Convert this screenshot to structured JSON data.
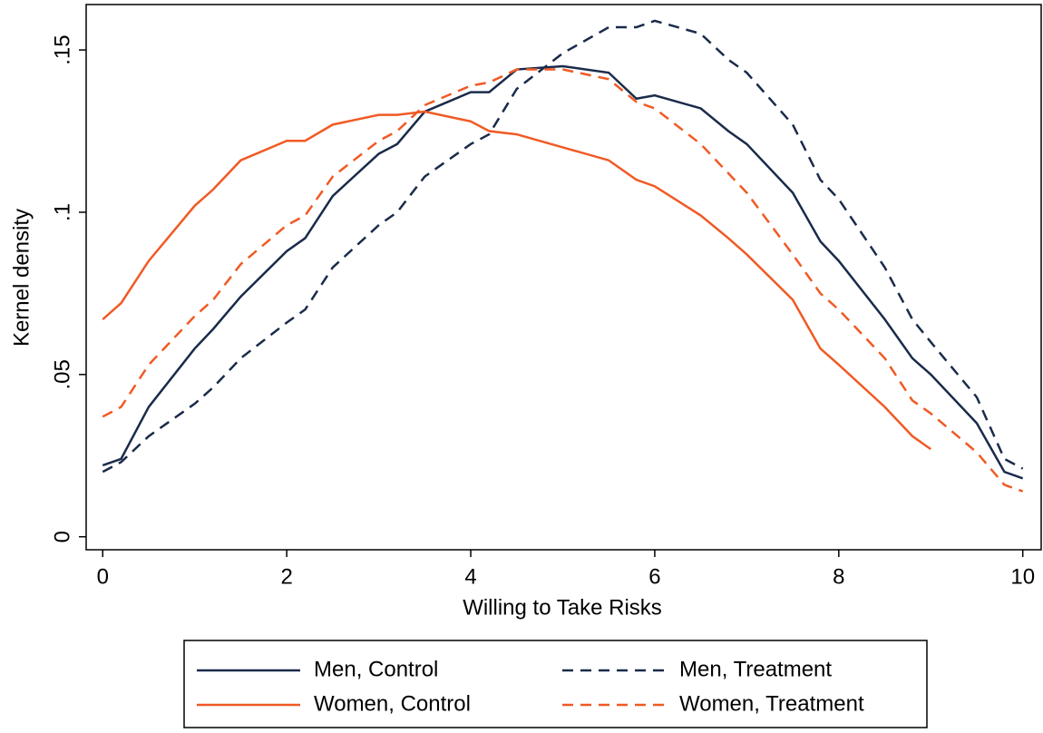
{
  "chart_data": {
    "type": "line",
    "xlabel": "Willing to Take Risks",
    "ylabel": "Kernel density",
    "x": [
      0,
      0.2,
      0.5,
      1,
      1.2,
      1.5,
      2,
      2.2,
      2.5,
      3,
      3.2,
      3.5,
      4,
      4.2,
      4.5,
      5,
      5.5,
      5.8,
      6,
      6.5,
      6.8,
      7,
      7.5,
      7.8,
      8,
      8.5,
      8.8,
      9,
      9.5,
      9.8,
      10
    ],
    "series": [
      {
        "name": "Men, Control",
        "color": "#1a2b4a",
        "dashed": false,
        "values": [
          0.022,
          0.024,
          0.04,
          0.058,
          0.064,
          0.074,
          0.088,
          0.092,
          0.105,
          0.118,
          0.121,
          0.131,
          0.137,
          0.137,
          0.144,
          0.145,
          0.143,
          0.135,
          0.136,
          0.132,
          0.125,
          0.121,
          0.106,
          0.091,
          0.085,
          0.067,
          0.055,
          0.05,
          0.035,
          0.02,
          0.018
        ]
      },
      {
        "name": "Men, Treatment",
        "color": "#1a2b4a",
        "dashed": true,
        "values": [
          0.02,
          0.023,
          0.031,
          0.041,
          0.046,
          0.055,
          0.066,
          0.07,
          0.083,
          0.096,
          0.1,
          0.111,
          0.121,
          0.124,
          0.138,
          0.149,
          0.157,
          0.157,
          0.159,
          0.155,
          0.147,
          0.143,
          0.127,
          0.11,
          0.104,
          0.083,
          0.067,
          0.06,
          0.043,
          0.024,
          0.021
        ]
      },
      {
        "name": "Women, Control",
        "color": "#f05a24",
        "dashed": false,
        "values": [
          0.067,
          0.072,
          0.085,
          0.102,
          0.107,
          0.116,
          0.122,
          0.122,
          0.127,
          0.13,
          0.13,
          0.131,
          0.128,
          0.125,
          0.124,
          0.12,
          0.116,
          0.11,
          0.108,
          0.099,
          0.092,
          0.087,
          0.073,
          0.058,
          0.053,
          0.04,
          0.031,
          0.027,
          null,
          null,
          null
        ]
      },
      {
        "name": "Women, Treatment",
        "color": "#f05a24",
        "dashed": true,
        "values": [
          0.037,
          0.04,
          0.053,
          0.068,
          0.073,
          0.084,
          0.096,
          0.099,
          0.111,
          0.122,
          0.125,
          0.133,
          0.139,
          0.14,
          0.144,
          0.144,
          0.141,
          0.134,
          0.132,
          0.121,
          0.112,
          0.106,
          0.087,
          0.075,
          0.07,
          0.055,
          0.042,
          0.038,
          0.026,
          0.016,
          0.014
        ]
      }
    ],
    "xlim": [
      -0.18,
      10.2
    ],
    "ylim": [
      -0.004,
      0.164
    ],
    "xticks": [
      0,
      2,
      4,
      6,
      8,
      10
    ],
    "yticks": [
      0,
      {
        "value": 0.05,
        "label": ".05"
      },
      {
        "value": 0.1,
        "label": ".1"
      },
      {
        "value": 0.15,
        "label": ".15"
      }
    ],
    "legend": "bottom"
  }
}
